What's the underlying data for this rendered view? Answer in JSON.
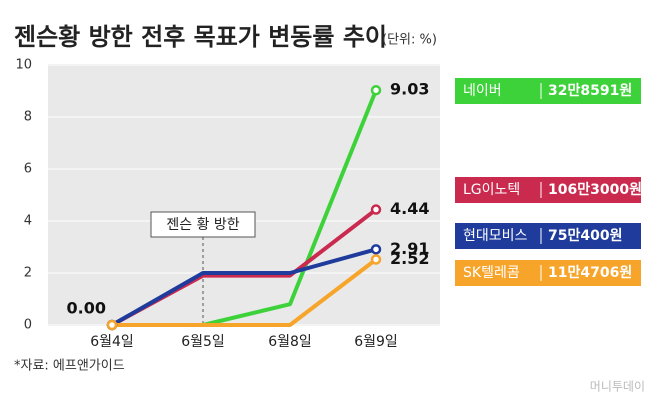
{
  "chart_data": {
    "type": "line",
    "title": "젠슨황 방한 전후 목표가 변동률 추이",
    "subtitle": "(단위: %)",
    "categories": [
      "6월4일",
      "6월5일",
      "6월8일",
      "6월9일"
    ],
    "series": [
      {
        "name": "네이버",
        "price": "32만8591원",
        "color": "#3ed23a",
        "values": [
          0,
          0,
          0.8,
          9.03
        ],
        "value_labels": [
          null,
          null,
          null,
          "9.03"
        ]
      },
      {
        "name": "LG이노텍",
        "price": "106만3000원",
        "color": "#c92a4e",
        "values": [
          0,
          1.9,
          1.9,
          4.44
        ],
        "value_labels": [
          null,
          null,
          null,
          "4.44"
        ]
      },
      {
        "name": "현대모비스",
        "price": "75만400원",
        "color": "#1f3b9c",
        "values": [
          0,
          2.0,
          2.0,
          2.91
        ],
        "value_labels": [
          null,
          null,
          null,
          "2.91"
        ]
      },
      {
        "name": "SK텔레콤",
        "price": "11만4706원",
        "color": "#f7a42a",
        "values": [
          0,
          0,
          0,
          2.52
        ],
        "value_labels": [
          "0.00",
          null,
          null,
          "2.52"
        ]
      }
    ],
    "ylim": [
      0,
      10
    ],
    "yticks": [
      0,
      2,
      4,
      6,
      8,
      10
    ],
    "grid": true,
    "annotation": "젠슨 황 방한",
    "annotation_category": 1,
    "source": "*자료: 에프앤가이드",
    "watermark": "머니투데이"
  }
}
